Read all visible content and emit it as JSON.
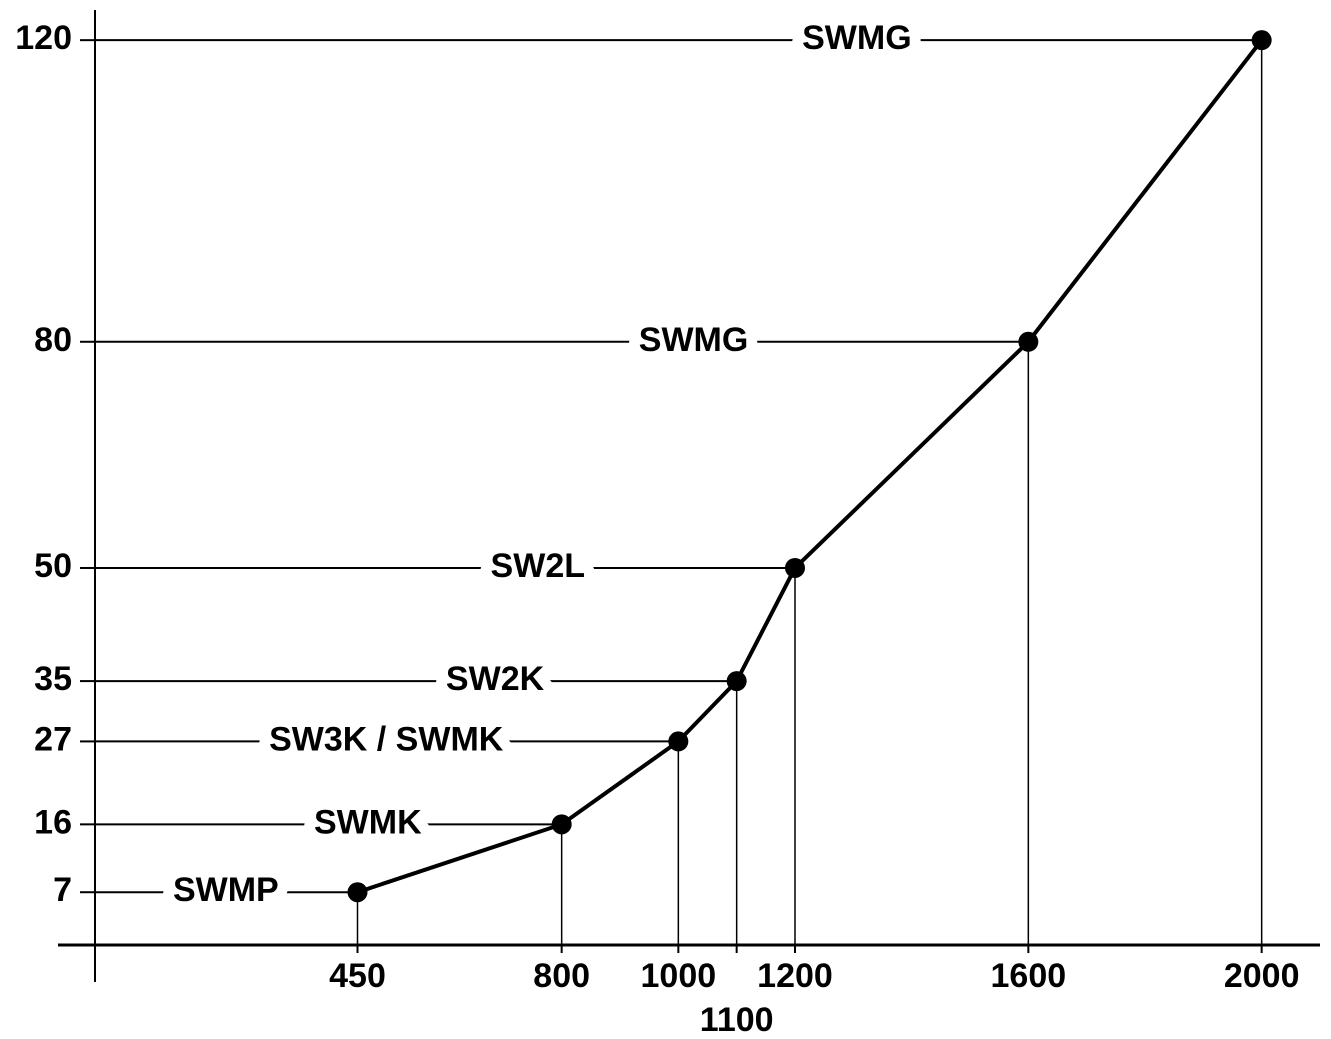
{
  "chart_data": {
    "type": "line",
    "x": [
      450,
      800,
      1000,
      1100,
      1200,
      1600,
      2000
    ],
    "values": [
      7,
      16,
      27,
      35,
      50,
      80,
      120
    ],
    "point_labels": [
      "SWMP",
      "SWMK",
      "SW3K / SWMK",
      "SW2K",
      "SW2L",
      "SWMG",
      "SWMG"
    ],
    "color": "#000000",
    "xlim": [
      0,
      2100
    ],
    "xticks": [
      450,
      800,
      1000,
      1100,
      1200,
      1600,
      2000
    ],
    "ylim": [
      0,
      124
    ],
    "yticks": [
      7,
      16,
      27,
      35,
      50,
      80,
      120
    ]
  }
}
